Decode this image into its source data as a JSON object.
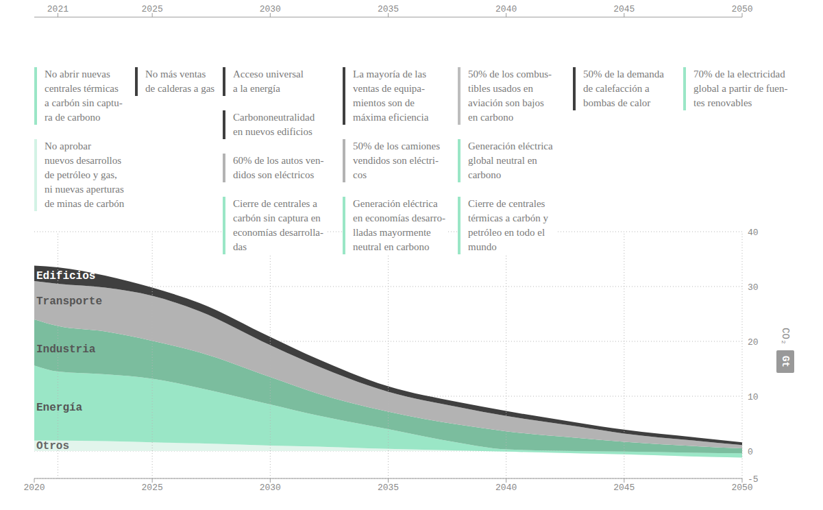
{
  "chart_data": {
    "type": "area",
    "stacked": true,
    "grid": true,
    "ylabel": "CO₂",
    "yunit": "Gt",
    "x": [
      2020,
      2021,
      2023,
      2025,
      2027,
      2030,
      2032,
      2035,
      2038,
      2040,
      2043,
      2045,
      2048,
      2050
    ],
    "xlim": [
      2020,
      2050
    ],
    "xticks": [
      2020,
      2025,
      2030,
      2035,
      2040,
      2045,
      2050
    ],
    "x2lim": [
      2020,
      2050
    ],
    "x2ticks": [
      2021,
      2025,
      2030,
      2035,
      2040,
      2045,
      2050
    ],
    "ylim": [
      -5,
      40
    ],
    "yticks": [
      -5,
      0,
      10,
      20,
      30,
      40
    ],
    "series": [
      {
        "name": "Otros",
        "color": "#e2f5ec",
        "values": [
          1.9,
          1.9,
          1.8,
          1.6,
          1.4,
          1.0,
          0.8,
          0.4,
          0.1,
          -0.1,
          -0.4,
          -0.6,
          -1.0,
          -1.2
        ]
      },
      {
        "name": "Energía",
        "color": "#9ae6c6",
        "values": [
          13.7,
          12.6,
          12.2,
          11.6,
          10.1,
          7.5,
          5.7,
          3.6,
          1.4,
          0.4,
          0.4,
          0.5,
          0.7,
          0.8
        ]
      },
      {
        "name": "Industria",
        "color": "#7bbd9e",
        "values": [
          8.4,
          8.3,
          7.8,
          6.9,
          6.5,
          5.0,
          4.0,
          3.2,
          3.3,
          3.3,
          2.4,
          1.8,
          1.2,
          0.9
        ]
      },
      {
        "name": "Transporte",
        "color": "#b3b3b3",
        "values": [
          7.0,
          7.7,
          8.0,
          8.2,
          7.5,
          5.8,
          5.0,
          3.6,
          3.2,
          2.8,
          2.1,
          1.5,
          1.0,
          0.6
        ]
      },
      {
        "name": "Edificios",
        "color": "#3f3f3f",
        "values": [
          2.8,
          3.0,
          2.2,
          1.5,
          1.5,
          1.5,
          1.3,
          1.0,
          0.9,
          0.9,
          0.7,
          0.7,
          0.6,
          0.5
        ]
      }
    ],
    "annotations": [
      {
        "year": 2021,
        "items": [
          {
            "color": "#9ae6c6",
            "lines": [
              "No abrir nuevas",
              "centrales térmicas",
              "a carbón sin captu-",
              "ra de carbono"
            ]
          },
          {
            "color": "#d3f3e5",
            "lines": [
              "No aprobar",
              "nuevos desarrollos",
              "de petróleo y gas,",
              "ni nuevas aperturas",
              "de minas de carbón"
            ]
          }
        ]
      },
      {
        "year": 2025,
        "items": [
          {
            "color": "#3f3f3f",
            "lines": [
              "No más ventas",
              "de calderas a gas"
            ]
          }
        ]
      },
      {
        "year": 2030,
        "items": [
          {
            "color": "#3f3f3f",
            "lines": [
              "Acceso universal",
              "a la energía"
            ]
          },
          {
            "color": "#3f3f3f",
            "lines": [
              "Carbononeutralidad",
              "en nuevos edificios"
            ]
          },
          {
            "color": "#b3b3b3",
            "lines": [
              "60% de los autos ven-",
              "didos son eléctricos"
            ]
          },
          {
            "color": "#9ae6c6",
            "lines": [
              "Cierre de centrales a",
              "carbón sin captura en",
              "economías desarrolla-",
              "das"
            ]
          }
        ]
      },
      {
        "year": 2035,
        "items": [
          {
            "color": "#3f3f3f",
            "lines": [
              "La mayoría de las",
              "ventas de equipa-",
              "mientos son de",
              "máxima eficiencia"
            ]
          },
          {
            "color": "#b3b3b3",
            "lines": [
              "50% de los camiones",
              "vendidos son eléctri-",
              "cos"
            ]
          },
          {
            "color": "#9ae6c6",
            "lines": [
              "Generación eléctrica",
              "en economías desarro-",
              "lladas mayormente",
              "neutral en carbono"
            ]
          }
        ]
      },
      {
        "year": 2040,
        "items": [
          {
            "color": "#bdbdbd",
            "lines": [
              "50% de los combus-",
              "tibles usados en",
              "aviación son bajos",
              "en carbono"
            ]
          },
          {
            "color": "#9ae6c6",
            "lines": [
              "Generación eléctrica",
              "global neutral en",
              "carbono"
            ]
          },
          {
            "color": "#9ae6c6",
            "lines": [
              "Cierre de centrales",
              "térmicas a carbón y",
              "petróleo en todo el",
              "mundo"
            ]
          }
        ]
      },
      {
        "year": 2045,
        "items": [
          {
            "color": "#3f3f3f",
            "lines": [
              "50% de la demanda",
              "de calefacción a",
              "bombas de calor"
            ]
          }
        ]
      },
      {
        "year": 2050,
        "items": [
          {
            "color": "#9ae6c6",
            "lines": [
              "70% de la electricidad",
              "global a partir de fuen-",
              "tes renovables"
            ]
          }
        ]
      }
    ]
  }
}
